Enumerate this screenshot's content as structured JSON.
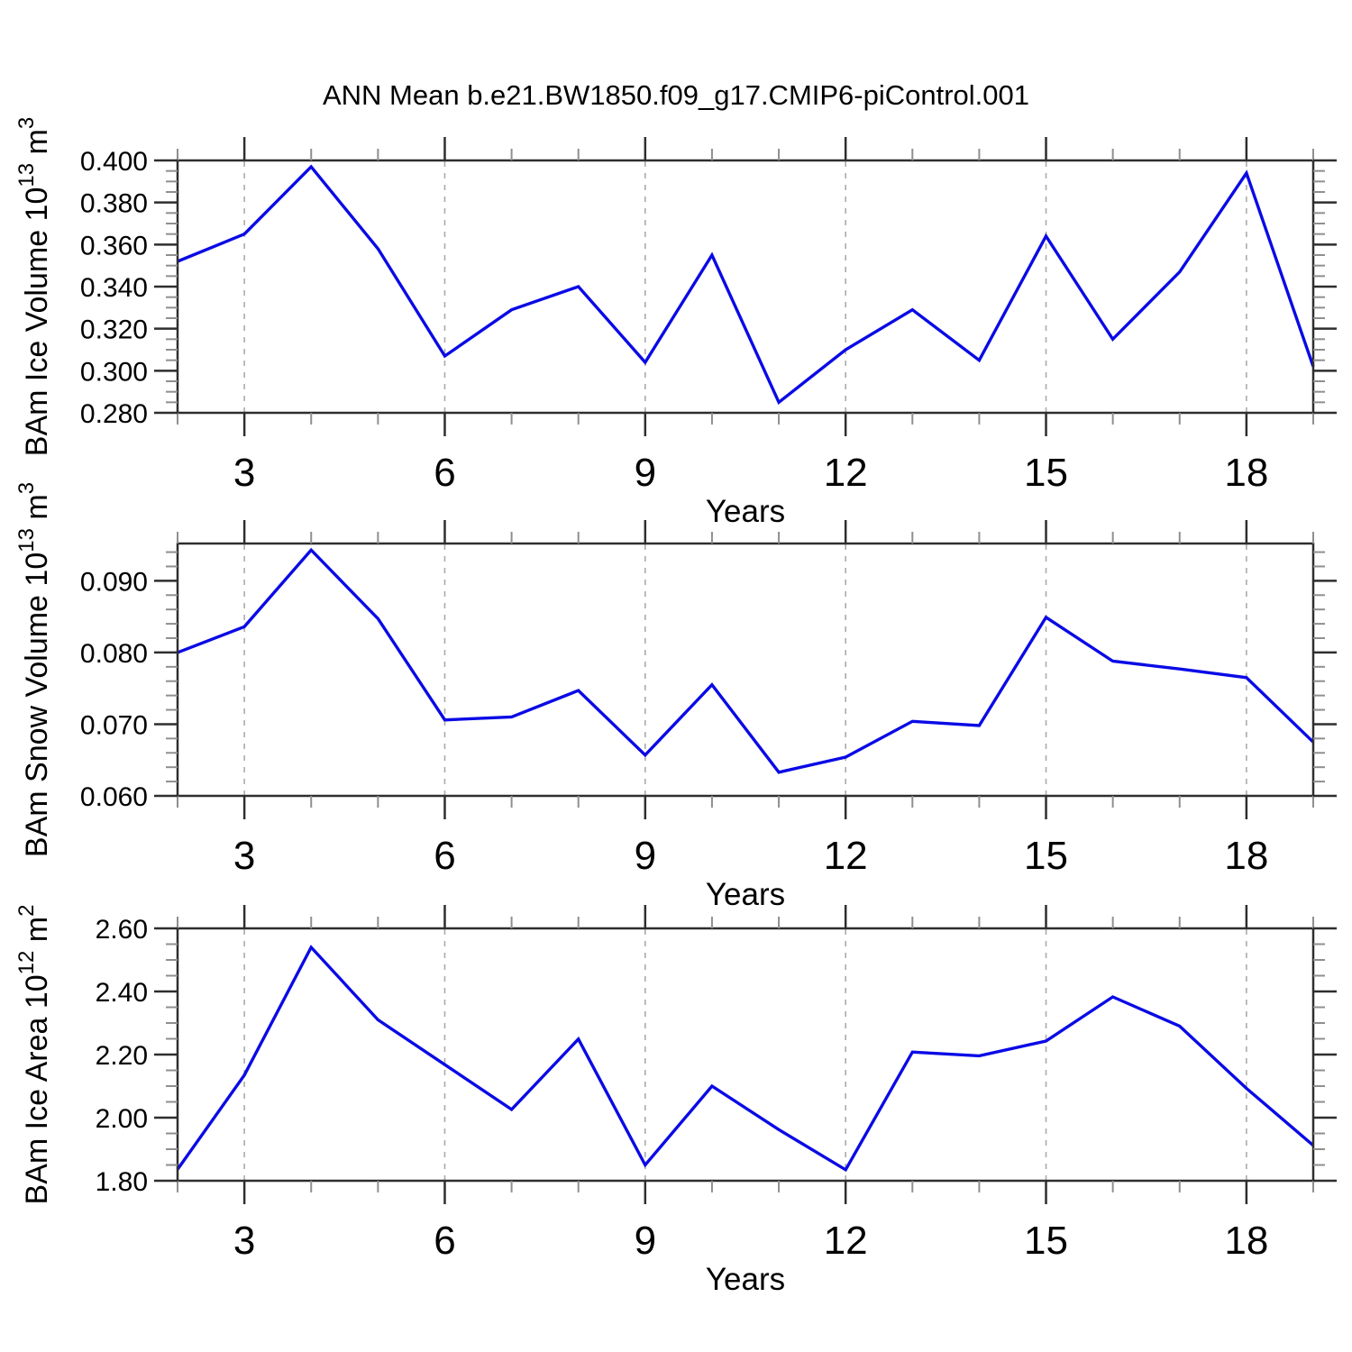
{
  "title": "ANN Mean b.e21.BW1850.f09_g17.CMIP6-piControl.001",
  "xlabel": "Years",
  "colors": {
    "line": "#0a0ae6",
    "grid": "#ababab",
    "axis": "#2e2e2e",
    "minor_tick": "#8f8f8f",
    "text": "#000000",
    "background": "#ffffff"
  },
  "chart_data": [
    {
      "type": "line",
      "name": "ice-volume",
      "ylabel": "BAm Ice Volume 10¹³ m³",
      "ylabel_parts": [
        {
          "t": "BAm Ice Volume 10",
          "sup": false
        },
        {
          "t": "13",
          "sup": true
        },
        {
          "t": " m",
          "sup": false
        },
        {
          "t": "3",
          "sup": true
        }
      ],
      "xlabel": "Years",
      "x": [
        2,
        3,
        4,
        5,
        6,
        7,
        8,
        9,
        10,
        11,
        12,
        13,
        14,
        15,
        16,
        17,
        18,
        19
      ],
      "values": [
        0.352,
        0.365,
        0.397,
        0.358,
        0.307,
        0.329,
        0.34,
        0.304,
        0.355,
        0.285,
        0.31,
        0.329,
        0.305,
        0.364,
        0.315,
        0.347,
        0.394,
        0.302
      ],
      "xlim": [
        2,
        19
      ],
      "ylim": [
        0.28,
        0.4
      ],
      "x_major_ticks": [
        3,
        6,
        9,
        12,
        15,
        18
      ],
      "x_tick_labels": [
        "3",
        "6",
        "9",
        "12",
        "15",
        "18"
      ],
      "x_minor_step": 1,
      "y_major_ticks": [
        0.28,
        0.3,
        0.32,
        0.34,
        0.36,
        0.38,
        0.4
      ],
      "y_tick_labels": [
        "0.280",
        "0.300",
        "0.320",
        "0.340",
        "0.360",
        "0.380",
        "0.400"
      ],
      "y_minor_step": 0.005,
      "grid": true,
      "legend": "none"
    },
    {
      "type": "line",
      "name": "snow-volume",
      "ylabel": "BAm Snow Volume 10¹³ m³",
      "ylabel_parts": [
        {
          "t": "BAm Snow Volume 10",
          "sup": false
        },
        {
          "t": "13",
          "sup": true
        },
        {
          "t": " m",
          "sup": false
        },
        {
          "t": "3",
          "sup": true
        }
      ],
      "xlabel": "Years",
      "x": [
        2,
        3,
        4,
        5,
        6,
        7,
        8,
        9,
        10,
        11,
        12,
        13,
        14,
        15,
        16,
        17,
        18,
        19
      ],
      "values": [
        0.08,
        0.0836,
        0.0943,
        0.0847,
        0.0706,
        0.071,
        0.0747,
        0.0657,
        0.0755,
        0.0633,
        0.0654,
        0.0704,
        0.0698,
        0.0849,
        0.0788,
        0.0777,
        0.0765,
        0.0675
      ],
      "xlim": [
        2,
        19
      ],
      "ylim": [
        0.06,
        0.0952
      ],
      "x_major_ticks": [
        3,
        6,
        9,
        12,
        15,
        18
      ],
      "x_tick_labels": [
        "3",
        "6",
        "9",
        "12",
        "15",
        "18"
      ],
      "x_minor_step": 1,
      "y_major_ticks": [
        0.06,
        0.07,
        0.08,
        0.09
      ],
      "y_tick_labels": [
        "0.060",
        "0.070",
        "0.080",
        "0.090"
      ],
      "y_minor_step": 0.002,
      "grid": true,
      "legend": "none"
    },
    {
      "type": "line",
      "name": "ice-area",
      "ylabel": "BAm Ice Area 10¹² m²",
      "ylabel_parts": [
        {
          "t": "BAm Ice Area 10",
          "sup": false
        },
        {
          "t": "12",
          "sup": true
        },
        {
          "t": " m",
          "sup": false
        },
        {
          "t": "2",
          "sup": true
        }
      ],
      "xlabel": "Years",
      "x": [
        2,
        3,
        4,
        5,
        6,
        7,
        8,
        9,
        10,
        11,
        12,
        13,
        14,
        15,
        16,
        17,
        18,
        19
      ],
      "values": [
        1.836,
        2.135,
        2.54,
        2.31,
        2.168,
        2.026,
        2.249,
        1.85,
        2.1,
        1.962,
        1.835,
        2.208,
        2.196,
        2.243,
        2.383,
        2.29,
        2.093,
        1.912
      ],
      "xlim": [
        2,
        19
      ],
      "ylim": [
        1.8,
        2.6
      ],
      "x_major_ticks": [
        3,
        6,
        9,
        12,
        15,
        18
      ],
      "x_tick_labels": [
        "3",
        "6",
        "9",
        "12",
        "15",
        "18"
      ],
      "x_minor_step": 1,
      "y_major_ticks": [
        1.8,
        2.0,
        2.2,
        2.4,
        2.6
      ],
      "y_tick_labels": [
        "1.80",
        "2.00",
        "2.20",
        "2.40",
        "2.60"
      ],
      "y_minor_step": 0.05,
      "grid": true,
      "legend": "none"
    }
  ]
}
